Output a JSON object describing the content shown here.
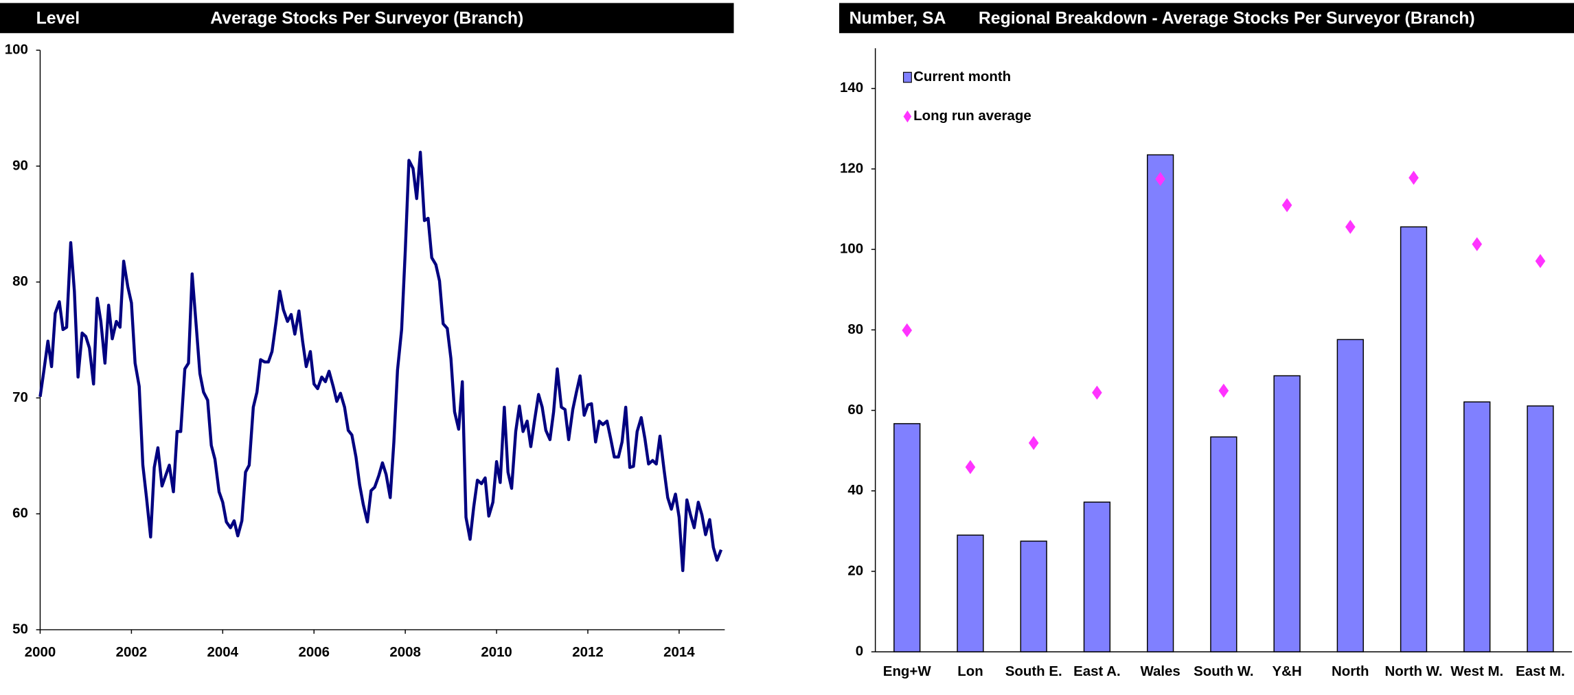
{
  "chart_data": [
    {
      "type": "line",
      "unit_label": "Level",
      "title": "Average Stocks Per Surveyor (Branch)",
      "xlim": [
        2000,
        2015
      ],
      "xticks": [
        2000,
        2002,
        2004,
        2006,
        2008,
        2010,
        2012,
        2014
      ],
      "ylim": [
        50,
        100
      ],
      "yticks": [
        50,
        60,
        70,
        80,
        90,
        100
      ],
      "grid": false,
      "series": [
        {
          "color": "#000080",
          "x": [
            2000,
            2000.08,
            2000.17,
            2000.25,
            2000.33,
            2000.42,
            2000.5,
            2000.58,
            2000.67,
            2000.75,
            2000.83,
            2000.92,
            2001,
            2001.08,
            2001.17,
            2001.25,
            2001.33,
            2001.42,
            2001.5,
            2001.58,
            2001.67,
            2001.75,
            2001.83,
            2001.92,
            2002,
            2002.08,
            2002.17,
            2002.25,
            2002.33,
            2002.42,
            2002.5,
            2002.58,
            2002.67,
            2002.75,
            2002.83,
            2002.92,
            2003,
            2003.08,
            2003.17,
            2003.25,
            2003.33,
            2003.42,
            2003.5,
            2003.58,
            2003.67,
            2003.75,
            2003.83,
            2003.92,
            2004,
            2004.08,
            2004.17,
            2004.25,
            2004.33,
            2004.42,
            2004.5,
            2004.58,
            2004.67,
            2004.75,
            2004.83,
            2004.92,
            2005,
            2005.08,
            2005.17,
            2005.25,
            2005.33,
            2005.42,
            2005.5,
            2005.58,
            2005.67,
            2005.75,
            2005.83,
            2005.92,
            2006,
            2006.08,
            2006.17,
            2006.25,
            2006.33,
            2006.42,
            2006.5,
            2006.58,
            2006.67,
            2006.75,
            2006.83,
            2006.92,
            2007,
            2007.08,
            2007.17,
            2007.25,
            2007.33,
            2007.42,
            2007.5,
            2007.58,
            2007.67,
            2007.75,
            2007.83,
            2007.92,
            2008,
            2008.08,
            2008.17,
            2008.25,
            2008.33,
            2008.42,
            2008.5,
            2008.58,
            2008.67,
            2008.75,
            2008.83,
            2008.92,
            2009,
            2009.08,
            2009.17,
            2009.25,
            2009.33,
            2009.42,
            2009.5,
            2009.58,
            2009.67,
            2009.75,
            2009.83,
            2009.92,
            2010,
            2010.08,
            2010.17,
            2010.25,
            2010.33,
            2010.42,
            2010.5,
            2010.58,
            2010.67,
            2010.75,
            2010.83,
            2010.92,
            2011,
            2011.08,
            2011.17,
            2011.25,
            2011.33,
            2011.42,
            2011.5,
            2011.58,
            2011.67,
            2011.75,
            2011.83,
            2011.92,
            2012,
            2012.08,
            2012.17,
            2012.25,
            2012.33,
            2012.42,
            2012.5,
            2012.58,
            2012.67,
            2012.75,
            2012.83,
            2012.92,
            2013,
            2013.08,
            2013.17,
            2013.25,
            2013.33,
            2013.42,
            2013.5,
            2013.58,
            2013.67,
            2013.75,
            2013.83,
            2013.92,
            2014,
            2014.08,
            2014.17,
            2014.25,
            2014.33,
            2014.42,
            2014.5,
            2014.58,
            2014.67,
            2014.75,
            2014.83,
            2014.92
          ],
          "values": [
            70.1,
            72.3,
            74.9,
            72.7,
            77.3,
            78.3,
            75.9,
            76.1,
            83.4,
            79.2,
            71.8,
            75.6,
            75.3,
            74.3,
            71.2,
            78.6,
            76.6,
            73.0,
            78.0,
            75.1,
            76.6,
            76.1,
            81.8,
            79.6,
            78.2,
            73.0,
            71.0,
            64.2,
            61.4,
            58.0,
            64.0,
            65.7,
            62.4,
            63.3,
            64.2,
            61.9,
            67.1,
            67.1,
            72.5,
            73.0,
            80.7,
            76.2,
            72.1,
            70.5,
            69.8,
            65.9,
            64.7,
            61.9,
            61.0,
            59.3,
            58.8,
            59.4,
            58.1,
            59.4,
            63.6,
            64.2,
            69.2,
            70.5,
            73.3,
            73.1,
            73.1,
            74.0,
            76.6,
            79.2,
            77.6,
            76.6,
            77.2,
            75.5,
            77.5,
            74.9,
            72.7,
            74.0,
            71.2,
            70.8,
            71.8,
            71.4,
            72.3,
            71.0,
            69.7,
            70.4,
            69.2,
            67.2,
            66.8,
            64.9,
            62.5,
            60.8,
            59.3,
            62.0,
            62.3,
            63.3,
            64.4,
            63.4,
            61.4,
            66.2,
            72.4,
            75.9,
            82.7,
            90.5,
            89.8,
            87.2,
            91.2,
            85.3,
            85.5,
            82.1,
            81.5,
            80.1,
            76.4,
            76.0,
            73.4,
            68.8,
            67.3,
            71.4,
            59.7,
            57.8,
            60.6,
            62.9,
            62.6,
            63.1,
            59.8,
            61.0,
            64.5,
            62.7,
            69.2,
            63.6,
            62.2,
            67.1,
            69.3,
            67.1,
            68.0,
            65.8,
            68.0,
            70.3,
            69.2,
            67.2,
            66.4,
            68.8,
            72.5,
            69.2,
            69.0,
            66.4,
            69.0,
            70.5,
            71.9,
            68.5,
            69.4,
            69.5,
            66.2,
            68.0,
            67.7,
            68.0,
            66.5,
            64.9,
            64.9,
            66.2,
            69.2,
            64.0,
            64.1,
            67.1,
            68.3,
            66.5,
            64.3,
            64.6,
            64.3,
            66.7,
            63.8,
            61.4,
            60.4,
            61.7,
            59.7,
            55.1,
            61.2,
            59.9,
            58.8,
            61.0,
            59.9,
            58.2,
            59.5,
            57.1,
            56.0,
            56.9
          ]
        }
      ]
    },
    {
      "type": "bar",
      "unit_label": "Number, SA",
      "title": "Regional Breakdown - Average Stocks Per Surveyor (Branch)",
      "categories": [
        "Eng+W",
        "Lon",
        "South E.",
        "East A.",
        "Wales",
        "South W.",
        "Y&H",
        "North",
        "North W.",
        "West M.",
        "East M."
      ],
      "ylim": [
        0,
        150
      ],
      "yticks": [
        0,
        20,
        40,
        60,
        80,
        100,
        120,
        140
      ],
      "grid": false,
      "legend": "top-left",
      "series": [
        {
          "name": "Current month",
          "mark": "bar",
          "color": "#8080ff",
          "values": [
            56.7,
            29.0,
            27.5,
            37.2,
            123.5,
            53.4,
            68.6,
            77.6,
            105.6,
            62.1,
            61.1
          ]
        },
        {
          "name": "Long run average",
          "mark": "diamond",
          "color": "#ff33ff",
          "values": [
            79.9,
            45.9,
            51.9,
            64.4,
            117.5,
            64.9,
            111.0,
            105.6,
            117.8,
            101.3,
            97.1
          ]
        }
      ]
    }
  ]
}
